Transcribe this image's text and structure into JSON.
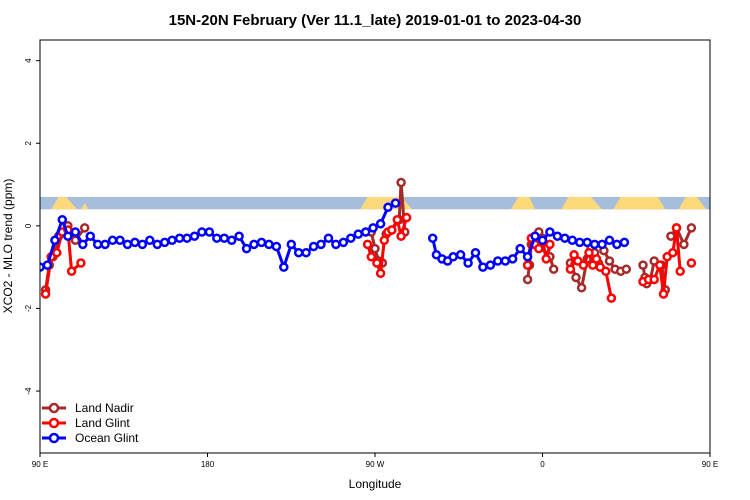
{
  "chart_data": {
    "type": "line",
    "title": "15N-20N February (Ver 11.1_late)   2019-01-01 to 2023-04-30",
    "xlabel": "Longitude",
    "ylabel": "XCO2 - MLO trend (ppm)",
    "xlim": [
      90,
      450
    ],
    "ylim": [
      -5.5,
      4.5
    ],
    "x_ticks": [
      {
        "value": 90,
        "label": "90 E"
      },
      {
        "value": 180,
        "label": "180"
      },
      {
        "value": 270,
        "label": "90 W"
      },
      {
        "value": 360,
        "label": "0"
      },
      {
        "value": 450,
        "label": "90 E"
      },
      {
        "value": 540,
        "label": "180"
      }
    ],
    "y_ticks": [
      {
        "value": -4,
        "label": "-4"
      },
      {
        "value": -2,
        "label": "-2"
      },
      {
        "value": 0,
        "label": "0"
      },
      {
        "value": 2,
        "label": "2"
      },
      {
        "value": 4,
        "label": "4"
      }
    ],
    "grid": false,
    "legend_position": "bottom-left",
    "land_strip": {
      "y_range": [
        0.4,
        0.7
      ],
      "ocean_color": "#a6bddb",
      "land_color": "#fcd97a"
    },
    "series": [
      {
        "name": "Land Nadir",
        "color": "#a52a2a",
        "segments": [
          [
            [
              93,
              -1.55
            ],
            [
              95,
              -0.95
            ],
            [
              97,
              -0.75
            ],
            [
              100,
              -0.25
            ],
            [
              103,
              -0.15
            ],
            [
              105,
              0.0
            ],
            [
              109,
              -0.35
            ],
            [
              114,
              -0.05
            ]
          ],
          [
            [
              268,
              -0.15
            ],
            [
              270,
              -0.55
            ],
            [
              272,
              -0.85
            ],
            [
              274,
              -0.9
            ]
          ],
          [
            [
              276,
              -0.2
            ],
            [
              279,
              -0.1
            ],
            [
              283,
              0.15
            ],
            [
              284,
              1.05
            ],
            [
              286,
              -0.15
            ]
          ],
          [
            [
              352,
              -1.3
            ],
            [
              353,
              -0.95
            ],
            [
              354,
              -0.45
            ],
            [
              356,
              -0.25
            ],
            [
              358,
              -0.15
            ],
            [
              360,
              -0.3
            ],
            [
              362,
              -0.55
            ],
            [
              364,
              -0.75
            ],
            [
              366,
              -1.05
            ]
          ],
          [
            [
              375,
              -0.9
            ],
            [
              378,
              -1.25
            ],
            [
              381,
              -1.5
            ],
            [
              384,
              -0.8
            ],
            [
              386,
              -0.55
            ],
            [
              388,
              -0.65
            ],
            [
              390,
              -0.9
            ]
          ],
          [
            [
              393,
              -0.6
            ],
            [
              396,
              -0.85
            ],
            [
              399,
              -1.05
            ],
            [
              402,
              -1.1
            ],
            [
              405,
              -1.05
            ]
          ],
          [
            [
              414,
              -0.95
            ],
            [
              415,
              -1.25
            ],
            [
              416,
              -1.4
            ],
            [
              418,
              -1.3
            ],
            [
              420,
              -0.85
            ],
            [
              424,
              -0.95
            ],
            [
              426,
              -1.55
            ]
          ],
          [
            [
              429,
              -0.25
            ],
            [
              432,
              -0.05
            ],
            [
              436,
              -0.45
            ],
            [
              440,
              -0.05
            ]
          ]
        ]
      },
      {
        "name": "Land Glint",
        "color": "#ff0000",
        "segments": [
          [
            [
              93,
              -1.65
            ],
            [
              96,
              -0.75
            ],
            [
              99,
              -0.65
            ],
            [
              102,
              -0.15
            ],
            [
              105,
              -0.1
            ],
            [
              107,
              -1.1
            ],
            [
              112,
              -0.9
            ]
          ],
          [
            [
              266,
              -0.45
            ],
            [
              268,
              -0.75
            ],
            [
              271,
              -0.9
            ],
            [
              273,
              -1.15
            ],
            [
              275,
              -0.35
            ],
            [
              277,
              -0.15
            ],
            [
              279,
              -0.1
            ],
            [
              282,
              0.15
            ],
            [
              284,
              -0.25
            ],
            [
              287,
              0.2
            ]
          ],
          [
            [
              352,
              -0.95
            ],
            [
              354,
              -0.3
            ],
            [
              356,
              -0.45
            ],
            [
              358,
              -0.55
            ],
            [
              360,
              -0.35
            ],
            [
              362,
              -0.8
            ],
            [
              364,
              -0.45
            ]
          ],
          [
            [
              375,
              -1.05
            ],
            [
              377,
              -0.7
            ],
            [
              379,
              -0.85
            ],
            [
              382,
              -0.95
            ],
            [
              385,
              -0.65
            ],
            [
              387,
              -0.95
            ],
            [
              389,
              -0.8
            ],
            [
              391,
              -1.0
            ]
          ],
          [
            [
              394,
              -1.1
            ],
            [
              397,
              -1.75
            ]
          ],
          [
            [
              414,
              -1.35
            ],
            [
              417,
              -1.3
            ],
            [
              420,
              -1.3
            ],
            [
              423,
              -0.95
            ],
            [
              425,
              -1.65
            ],
            [
              427,
              -0.75
            ],
            [
              430,
              -0.65
            ],
            [
              432,
              -0.05
            ],
            [
              434,
              -1.1
            ]
          ],
          [
            [
              440,
              -0.9
            ]
          ]
        ]
      },
      {
        "name": "Ocean Glint",
        "color": "#0000ff",
        "segments": [
          [
            [
              90,
              -1.0
            ],
            [
              94,
              -0.95
            ],
            [
              98,
              -0.35
            ],
            [
              102,
              0.15
            ],
            [
              105,
              -0.25
            ],
            [
              109,
              -0.15
            ],
            [
              113,
              -0.45
            ],
            [
              117,
              -0.25
            ],
            [
              121,
              -0.45
            ],
            [
              125,
              -0.45
            ],
            [
              129,
              -0.35
            ],
            [
              133,
              -0.35
            ],
            [
              137,
              -0.45
            ],
            [
              141,
              -0.4
            ],
            [
              145,
              -0.45
            ],
            [
              149,
              -0.35
            ],
            [
              153,
              -0.45
            ],
            [
              157,
              -0.4
            ],
            [
              161,
              -0.35
            ],
            [
              165,
              -0.3
            ],
            [
              169,
              -0.3
            ],
            [
              173,
              -0.25
            ],
            [
              177,
              -0.15
            ],
            [
              181,
              -0.15
            ],
            [
              185,
              -0.3
            ],
            [
              189,
              -0.3
            ],
            [
              193,
              -0.35
            ],
            [
              197,
              -0.25
            ],
            [
              201,
              -0.55
            ],
            [
              205,
              -0.45
            ],
            [
              209,
              -0.4
            ],
            [
              213,
              -0.45
            ],
            [
              217,
              -0.5
            ],
            [
              221,
              -1.0
            ],
            [
              225,
              -0.45
            ],
            [
              229,
              -0.65
            ],
            [
              233,
              -0.65
            ],
            [
              237,
              -0.5
            ],
            [
              241,
              -0.45
            ],
            [
              245,
              -0.3
            ],
            [
              249,
              -0.45
            ],
            [
              253,
              -0.4
            ],
            [
              257,
              -0.3
            ],
            [
              261,
              -0.2
            ],
            [
              265,
              -0.15
            ],
            [
              269,
              -0.05
            ],
            [
              273,
              0.05
            ],
            [
              277,
              0.45
            ],
            [
              281,
              0.55
            ]
          ],
          [
            [
              301,
              -0.3
            ],
            [
              303,
              -0.7
            ],
            [
              306,
              -0.8
            ],
            [
              309,
              -0.85
            ],
            [
              312,
              -0.75
            ],
            [
              316,
              -0.7
            ],
            [
              320,
              -0.9
            ],
            [
              324,
              -0.65
            ],
            [
              328,
              -1.0
            ],
            [
              332,
              -0.95
            ],
            [
              336,
              -0.85
            ],
            [
              340,
              -0.85
            ],
            [
              344,
              -0.8
            ],
            [
              348,
              -0.55
            ],
            [
              352,
              -0.75
            ],
            [
              356,
              -0.25
            ],
            [
              360,
              -0.35
            ],
            [
              364,
              -0.15
            ],
            [
              368,
              -0.25
            ],
            [
              372,
              -0.3
            ],
            [
              376,
              -0.35
            ],
            [
              380,
              -0.4
            ],
            [
              384,
              -0.4
            ],
            [
              388,
              -0.45
            ],
            [
              392,
              -0.45
            ],
            [
              396,
              -0.35
            ],
            [
              400,
              -0.45
            ],
            [
              404,
              -0.4
            ]
          ]
        ]
      }
    ]
  }
}
